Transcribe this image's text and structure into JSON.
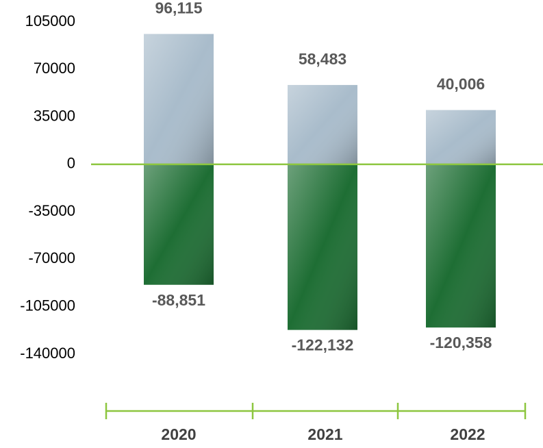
{
  "chart_data": {
    "type": "bar",
    "categories": [
      "2020",
      "2021",
      "2022"
    ],
    "series": [
      {
        "color": "#a9bccb",
        "values": [
          96115,
          58483,
          40006
        ],
        "value_labels": [
          "96,115",
          "58,483",
          "40,006"
        ]
      },
      {
        "color": "#1e6e34",
        "values": [
          -88851,
          -122132,
          -120358
        ],
        "value_labels": [
          "-88,851",
          "-122,132",
          "-120,358"
        ]
      }
    ],
    "ylim": [
      -140000,
      105000
    ],
    "yticks": [
      105000,
      70000,
      35000,
      0,
      -35000,
      -70000,
      -105000,
      -140000
    ],
    "grid": false
  }
}
